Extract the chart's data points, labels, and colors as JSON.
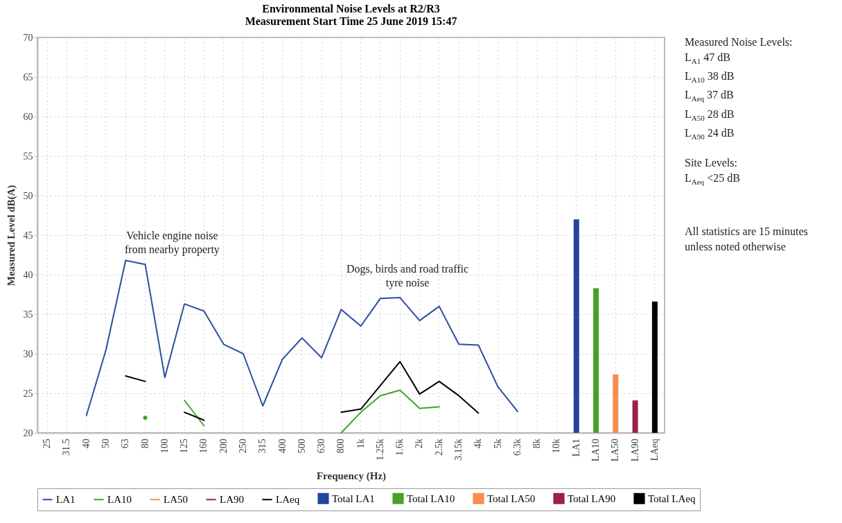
{
  "chart_data": {
    "type": "line",
    "title": "Environmental Noise Levels at R2/R3",
    "subtitle": "Measurement Start Time 25 June 2019 15:47",
    "xlabel": "Frequency (Hz)",
    "ylabel": "Measured Level dB(A)",
    "categories": [
      "25",
      "31.5",
      "40",
      "50",
      "63",
      "80",
      "100",
      "125",
      "160",
      "200",
      "250",
      "315",
      "400",
      "500",
      "630",
      "800",
      "1k",
      "1.25k",
      "1.6k",
      "2k",
      "2.5k",
      "3.15k",
      "4k",
      "5k",
      "6.3k",
      "8k",
      "10k",
      "LA1",
      "LA10",
      "LA50",
      "LA90",
      "LAeq"
    ],
    "ylim": [
      20,
      70
    ],
    "yticks": [
      20,
      25,
      30,
      35,
      40,
      45,
      50,
      55,
      60,
      65,
      70
    ],
    "grid": true,
    "legend": "bottom",
    "series": [
      {
        "name": "LA1",
        "color": "#2a4ea0",
        "values": [
          null,
          null,
          22.2,
          30.5,
          41.8,
          41.3,
          27.0,
          36.3,
          35.4,
          31.2,
          30.0,
          23.4,
          29.3,
          32.0,
          29.5,
          35.6,
          33.5,
          37.0,
          37.1,
          34.2,
          36.0,
          31.2,
          31.1,
          25.8,
          22.7,
          null,
          null,
          null,
          null,
          null,
          null,
          null
        ]
      },
      {
        "name": "LA10",
        "color": "#3fa02a",
        "values": [
          null,
          null,
          null,
          null,
          null,
          21.9,
          null,
          24.1,
          20.9,
          null,
          null,
          null,
          null,
          null,
          null,
          20.0,
          22.6,
          24.7,
          25.4,
          23.1,
          23.3,
          null,
          null,
          null,
          null,
          null,
          null,
          null,
          null,
          null,
          null,
          null
        ]
      },
      {
        "name": "LA50",
        "color": "#f98c4c",
        "values": [
          null,
          null,
          null,
          null,
          null,
          null,
          null,
          null,
          null,
          null,
          null,
          null,
          null,
          null,
          null,
          null,
          null,
          null,
          null,
          null,
          null,
          null,
          null,
          null,
          null,
          null,
          null,
          null,
          null,
          null,
          null,
          null
        ]
      },
      {
        "name": "LA90",
        "color": "#9b1b46",
        "values": [
          null,
          null,
          null,
          null,
          null,
          null,
          null,
          null,
          null,
          null,
          null,
          null,
          null,
          null,
          null,
          null,
          null,
          null,
          null,
          null,
          null,
          null,
          null,
          null,
          null,
          null,
          null,
          null,
          null,
          null,
          null,
          null
        ]
      },
      {
        "name": "LAeq",
        "color": "#000000",
        "values": [
          null,
          null,
          null,
          null,
          27.2,
          26.5,
          null,
          22.6,
          21.6,
          null,
          null,
          null,
          null,
          null,
          null,
          22.6,
          23.0,
          26.0,
          29.0,
          24.9,
          26.5,
          24.7,
          22.5,
          null,
          null,
          null,
          null,
          null,
          null,
          null,
          null,
          null
        ]
      },
      {
        "name": "Total LA1",
        "type": "bar",
        "color": "#22449a",
        "values": [
          null,
          null,
          null,
          null,
          null,
          null,
          null,
          null,
          null,
          null,
          null,
          null,
          null,
          null,
          null,
          null,
          null,
          null,
          null,
          null,
          null,
          null,
          null,
          null,
          null,
          null,
          null,
          47.0,
          null,
          null,
          null,
          null
        ]
      },
      {
        "name": "Total LA10",
        "type": "bar",
        "color": "#48a028",
        "values": [
          null,
          null,
          null,
          null,
          null,
          null,
          null,
          null,
          null,
          null,
          null,
          null,
          null,
          null,
          null,
          null,
          null,
          null,
          null,
          null,
          null,
          null,
          null,
          null,
          null,
          null,
          null,
          null,
          38.3,
          null,
          null,
          null
        ]
      },
      {
        "name": "Total LA50",
        "type": "bar",
        "color": "#fb8c4c",
        "values": [
          null,
          null,
          null,
          null,
          null,
          null,
          null,
          null,
          null,
          null,
          null,
          null,
          null,
          null,
          null,
          null,
          null,
          null,
          null,
          null,
          null,
          null,
          null,
          null,
          null,
          null,
          null,
          null,
          null,
          27.4,
          null,
          null
        ]
      },
      {
        "name": "Total LA90",
        "type": "bar",
        "color": "#9c2146",
        "values": [
          null,
          null,
          null,
          null,
          null,
          null,
          null,
          null,
          null,
          null,
          null,
          null,
          null,
          null,
          null,
          null,
          null,
          null,
          null,
          null,
          null,
          null,
          null,
          null,
          null,
          null,
          null,
          null,
          null,
          null,
          24.1,
          null
        ]
      },
      {
        "name": "Total LAeq",
        "type": "bar",
        "color": "#000000",
        "values": [
          null,
          null,
          null,
          null,
          null,
          null,
          null,
          null,
          null,
          null,
          null,
          null,
          null,
          null,
          null,
          null,
          null,
          null,
          null,
          null,
          null,
          null,
          null,
          null,
          null,
          null,
          null,
          null,
          null,
          null,
          null,
          36.6
        ]
      }
    ],
    "annotations": [
      "Vehicle engine noise\nfrom nearby property",
      "Dogs, birds and road traffic\ntyre noise",
      "Measured Noise Levels:",
      "L$_{A1}$ 47 dB",
      "L$_{A10}$ 38 dB",
      "L$_{Aeq}$ 37 dB",
      "L$_{A50}$ 28 dB",
      "L$_{A90}$ 24 dB",
      "Site Levels:",
      "L$_{Aeq}$ <25 dB",
      "All statistics are 15 minutes unless noted otherwise"
    ]
  }
}
